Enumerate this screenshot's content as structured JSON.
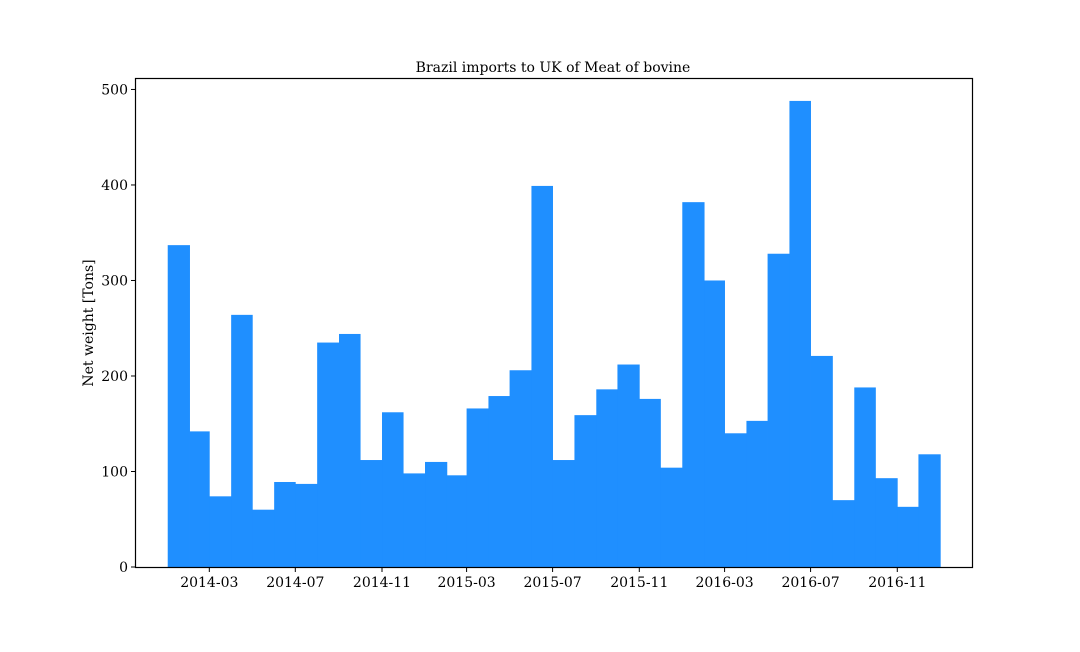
{
  "chart_data": {
    "type": "bar",
    "title": "Brazil imports to UK of Meat of bovine",
    "xlabel": "",
    "ylabel": "Net weight [Tons]",
    "ylim": [
      0,
      512
    ],
    "xlim": [
      "2013-11-17",
      "2017-02-15"
    ],
    "grid": false,
    "bar_color": "#1f8fff",
    "x_ticks": [
      "2014-03",
      "2014-07",
      "2014-11",
      "2015-03",
      "2015-07",
      "2015-11",
      "2016-03",
      "2016-07",
      "2016-11"
    ],
    "y_ticks": [
      0,
      100,
      200,
      300,
      400,
      500
    ],
    "months": [
      "2014-01",
      "2014-02",
      "2014-03",
      "2014-04",
      "2014-05",
      "2014-06",
      "2014-07",
      "2014-08",
      "2014-09",
      "2014-10",
      "2014-11",
      "2014-12",
      "2015-01",
      "2015-02",
      "2015-03",
      "2015-04",
      "2015-05",
      "2015-06",
      "2015-07",
      "2015-08",
      "2015-09",
      "2015-10",
      "2015-11",
      "2015-12",
      "2016-01",
      "2016-02",
      "2016-03",
      "2016-04",
      "2016-05",
      "2016-06",
      "2016-07",
      "2016-08",
      "2016-09",
      "2016-10",
      "2016-11",
      "2016-12"
    ],
    "values": [
      337,
      142,
      74,
      264,
      60,
      89,
      87,
      235,
      244,
      112,
      162,
      98,
      110,
      96,
      166,
      179,
      206,
      399,
      112,
      159,
      186,
      212,
      176,
      104,
      382,
      300,
      140,
      153,
      328,
      488,
      221,
      70,
      188,
      93,
      63,
      118
    ]
  }
}
